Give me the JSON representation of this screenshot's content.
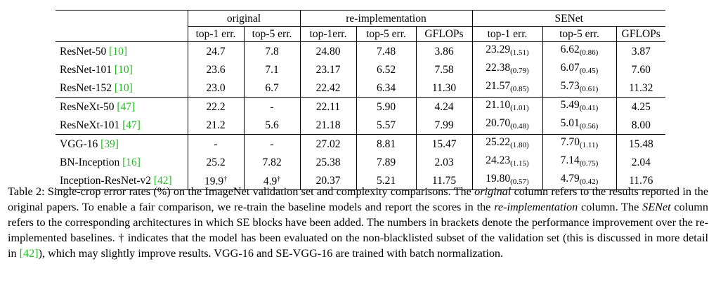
{
  "table": {
    "groups": [
      "original",
      "re-implementation",
      "SENet"
    ],
    "columns": {
      "orig_top1": "top-1 err.",
      "orig_top5": "top-5 err.",
      "re_top1": "top-1err.",
      "re_top5": "top-5 err.",
      "re_gflops": "GFLOPs",
      "se_top1": "top-1 err.",
      "se_top5": "top-5 err.",
      "se_gflops": "GFLOPs"
    },
    "rows": [
      {
        "name": "ResNet-50 ",
        "cite": "[10]",
        "o1": "24.7",
        "o5": "7.8",
        "r1": "24.80",
        "r5": "7.48",
        "rg": "3.86",
        "s1": "23.29",
        "s1d": "(1.51)",
        "s5": "6.62",
        "s5d": "(0.86)",
        "sg": "3.87"
      },
      {
        "name": "ResNet-101 ",
        "cite": "[10]",
        "o1": "23.6",
        "o5": "7.1",
        "r1": "23.17",
        "r5": "6.52",
        "rg": "7.58",
        "s1": "22.38",
        "s1d": "(0.79)",
        "s5": "6.07",
        "s5d": "(0.45)",
        "sg": "7.60"
      },
      {
        "name": "ResNet-152 ",
        "cite": "[10]",
        "o1": "23.0",
        "o5": "6.7",
        "r1": "22.42",
        "r5": "6.34",
        "rg": "11.30",
        "s1": "21.57",
        "s1d": "(0.85)",
        "s5": "5.73",
        "s5d": "(0.61)",
        "sg": "11.32"
      },
      {
        "name": "ResNeXt-50 ",
        "cite": "[47]",
        "o1": "22.2",
        "o5": "-",
        "r1": "22.11",
        "r5": "5.90",
        "rg": "4.24",
        "s1": "21.10",
        "s1d": "(1.01)",
        "s5": "5.49",
        "s5d": "(0.41)",
        "sg": "4.25"
      },
      {
        "name": "ResNeXt-101 ",
        "cite": "[47]",
        "o1": "21.2",
        "o5": "5.6",
        "r1": "21.18",
        "r5": "5.57",
        "rg": "7.99",
        "s1": "20.70",
        "s1d": "(0.48)",
        "s5": "5.01",
        "s5d": "(0.56)",
        "sg": "8.00"
      },
      {
        "name": "VGG-16 ",
        "cite": "[39]",
        "o1": "-",
        "o5": "-",
        "r1": "27.02",
        "r5": "8.81",
        "rg": "15.47",
        "s1": "25.22",
        "s1d": "(1.80)",
        "s5": "7.70",
        "s5d": "(1.11)",
        "sg": "15.48"
      },
      {
        "name": "BN-Inception ",
        "cite": "[16]",
        "o1": "25.2",
        "o5": "7.82",
        "r1": "25.38",
        "r5": "7.89",
        "rg": "2.03",
        "s1": "24.23",
        "s1d": "(1.15)",
        "s5": "7.14",
        "s5d": "(0.75)",
        "sg": "2.04"
      },
      {
        "name": "Inception-ResNet-v2 ",
        "cite": "[42]",
        "o1": "19.9",
        "o1sup": "†",
        "o5": "4.9",
        "o5sup": "†",
        "r1": "20.37",
        "r5": "5.21",
        "rg": "11.75",
        "s1": "19.80",
        "s1d": "(0.57)",
        "s5": "4.79",
        "s5d": "(0.42)",
        "sg": "11.76"
      }
    ]
  },
  "caption": {
    "p1": "Table 2: Single-crop error rates (%) on the ImageNet validation set and complexity comparisons. The ",
    "e1": "original",
    "p2": " column refers to the results reported in the original papers. To enable a fair comparison, we re-train the baseline models and report the scores in the ",
    "e2": "re-implementation",
    "p3": " column. The ",
    "e3": "SENet",
    "p4": " column refers to the corresponding architectures in which SE blocks have been added. The numbers in brackets denote the performance improvement over the re-implemented baselines. † indicates that the model has been evaluated on the non-blacklisted subset of the validation set (this is discussed in more detail in ",
    "cite": "[42]",
    "p5": "), which may slightly improve results. VGG-16 and SE-VGG-16 are trained with batch normalization."
  },
  "colors": {
    "citation": "#22b922",
    "text": "#000000"
  }
}
